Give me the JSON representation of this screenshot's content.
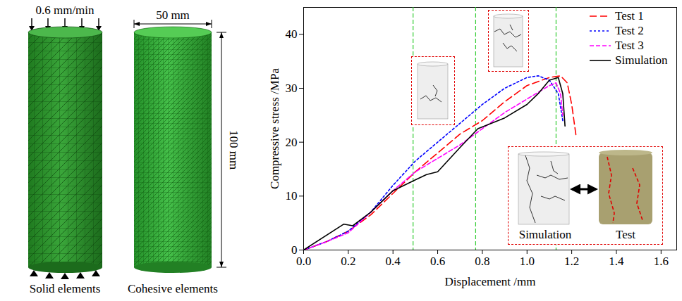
{
  "chart_data": {
    "type": "line",
    "x_label": "Displacement /mm",
    "y_label": "Compressive stress /MPa",
    "xlim": [
      0,
      1.67
    ],
    "ylim": [
      0,
      45
    ],
    "xticks": [
      {
        "value": 0,
        "label": "0.0"
      },
      0.2,
      0.4,
      0.6,
      0.8,
      {
        "value": 1,
        "label": "1.0"
      },
      1.2,
      1.4,
      1.6
    ],
    "yticks": [
      0,
      10,
      20,
      30,
      40
    ],
    "grid": false,
    "legend": "top-right",
    "series": [
      {
        "name": "Test 1",
        "color": "#ff0000",
        "line_style": "long-dashed",
        "x": [
          0,
          0.1,
          0.2,
          0.3,
          0.4,
          0.5,
          0.6,
          0.7,
          0.8,
          0.9,
          1.0,
          1.1,
          1.15,
          1.18,
          1.2,
          1.22
        ],
        "values": [
          0,
          1.5,
          3.5,
          6.5,
          10.5,
          14.5,
          18,
          21.5,
          24,
          27.5,
          30.5,
          32,
          32.3,
          31,
          27,
          21
        ]
      },
      {
        "name": "Test 2",
        "color": "#0000ff",
        "line_style": "short-dashed",
        "x": [
          0,
          0.1,
          0.2,
          0.3,
          0.4,
          0.5,
          0.6,
          0.7,
          0.8,
          0.9,
          1.0,
          1.05,
          1.1,
          1.14,
          1.16
        ],
        "values": [
          0,
          1.5,
          3.5,
          7,
          12,
          16.5,
          20,
          23.5,
          27,
          30,
          32,
          32.3,
          31.5,
          29,
          24
        ]
      },
      {
        "name": "Test 3",
        "color": "#ff00ff",
        "line_style": "dashed",
        "x": [
          0,
          0.1,
          0.2,
          0.3,
          0.4,
          0.5,
          0.6,
          0.7,
          0.8,
          0.9,
          1.0,
          1.1,
          1.13,
          1.15,
          1.16
        ],
        "values": [
          0,
          1.5,
          3.2,
          7,
          11,
          14.5,
          17,
          19.5,
          22.5,
          25.5,
          28,
          30.5,
          31,
          29,
          25
        ]
      },
      {
        "name": "Simulation",
        "color": "#000000",
        "line_style": "solid",
        "x": [
          0,
          0.18,
          0.22,
          0.3,
          0.4,
          0.5,
          0.55,
          0.6,
          0.7,
          0.78,
          0.9,
          1.0,
          1.05,
          1.1,
          1.14,
          1.16,
          1.17
        ],
        "values": [
          0,
          4.8,
          4.5,
          7,
          11,
          13,
          14,
          14.5,
          19,
          22.5,
          24.5,
          27,
          29,
          31.5,
          32,
          29,
          23
        ]
      }
    ],
    "reference_lines": {
      "x": [
        0.49,
        0.77,
        1.13
      ],
      "color": "#33cc33",
      "line_style": "dashed"
    },
    "annotations": [
      "Simulation",
      "Test"
    ]
  },
  "model_figure": {
    "load_rate": "0.6 mm/min",
    "diameter": "50 mm",
    "height": "100 mm",
    "panels": [
      "Solid elements",
      "Cohesive elements"
    ]
  }
}
